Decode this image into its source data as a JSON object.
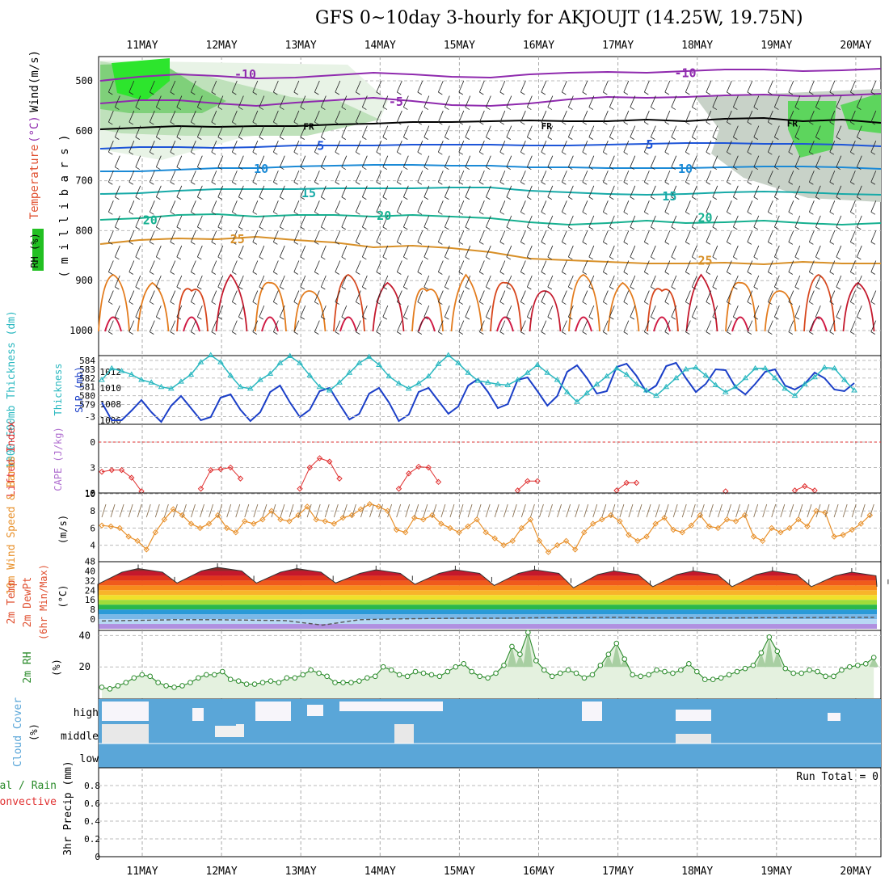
{
  "title": "GFS 0~10day 3-hourly for AKJOUJT (14.25W, 19.75N)",
  "date_labels": [
    "11MAY",
    "12MAY",
    "13MAY",
    "14MAY",
    "15MAY",
    "16MAY",
    "17MAY",
    "18MAY",
    "19MAY",
    "20MAY"
  ],
  "colors": {
    "rh": "#22c022",
    "temperature": "#e05030",
    "cape": "#b070d0",
    "slp": "#1b3fc8",
    "thickness": "#2ab8c0",
    "lifted": "#e03030",
    "wind10": "#e8902a",
    "rh2m": "#2a8a2a",
    "cloud": "#5aa6d8",
    "precip": "#2a8a2a"
  },
  "run_total_label": "Run Total = 0",
  "chart_data": [
    {
      "type": "heatmap",
      "panel": "upper-air",
      "ylabel_parts": [
        "RH (%)",
        "Temperature",
        "(°C)",
        "Wind",
        "(m/s)"
      ],
      "yaxis_label": "( m i l l i b a r s )",
      "ylim": [
        1000,
        470
      ],
      "yticks": [
        500,
        600,
        700,
        800,
        900,
        1000
      ],
      "contour_labels": [
        {
          "day": 1.3,
          "p": 487,
          "text": "-10"
        },
        {
          "day": 6.85,
          "p": 485,
          "text": "-10"
        },
        {
          "day": 3.2,
          "p": 542,
          "text": "-5"
        },
        {
          "day": 2.1,
          "p": 590,
          "text": "FR"
        },
        {
          "day": 5.1,
          "p": 589,
          "text": "FR"
        },
        {
          "day": 8.2,
          "p": 583,
          "text": "FR"
        },
        {
          "day": 2.25,
          "p": 630,
          "text": "5"
        },
        {
          "day": 6.4,
          "p": 628,
          "text": "5"
        },
        {
          "day": 1.5,
          "p": 676,
          "text": "10"
        },
        {
          "day": 6.85,
          "p": 676,
          "text": "10"
        },
        {
          "day": 2.1,
          "p": 725,
          "text": "15"
        },
        {
          "day": 6.65,
          "p": 731,
          "text": "15"
        },
        {
          "day": 0.1,
          "p": 779,
          "text": "20"
        },
        {
          "day": 3.05,
          "p": 770,
          "text": "20"
        },
        {
          "day": 7.1,
          "p": 774,
          "text": "20"
        },
        {
          "day": 1.2,
          "p": 817,
          "text": "25"
        },
        {
          "day": 7.1,
          "p": 860,
          "text": "25"
        }
      ]
    },
    {
      "type": "line",
      "panel": "slp-thickness",
      "ylabel": "1000-500mb Thickness (dm)",
      "ylabel2": "SLP (mb)",
      "yticks_left": [
        579,
        580,
        581,
        582,
        583,
        584
      ],
      "yticks_right": [
        1006,
        1008,
        1010,
        1012
      ],
      "series": [
        {
          "name": "SLP",
          "values": [
            1008.2,
            1006.0,
            1006.0,
            1007.2,
            1008.5,
            1007.0,
            1005.8,
            1007.8,
            1009.0,
            1007.5,
            1006.0,
            1006.4,
            1008.8,
            1009.2,
            1007.3,
            1005.9,
            1007.0,
            1009.5,
            1010.3,
            1008.2,
            1006.4,
            1007.3,
            1009.6,
            1010.0,
            1008.0,
            1006.1,
            1006.8,
            1009.3,
            1010.0,
            1008.2,
            1005.9,
            1006.7,
            1009.5,
            1010.0,
            1008.4,
            1006.8,
            1007.7,
            1010.3,
            1011.1,
            1009.5,
            1007.5,
            1008.0,
            1011.0,
            1011.3,
            1009.6,
            1007.8,
            1009.0,
            1012.0,
            1012.8,
            1011.2,
            1009.3,
            1009.6,
            1012.6,
            1013.0,
            1011.5,
            1009.5,
            1010.3,
            1012.7,
            1013.1,
            1011.2,
            1009.5,
            1010.5,
            1012.3,
            1012.2,
            1010.1,
            1009.2,
            1010.5,
            1012.0,
            1012.3,
            1010.3,
            1009.8,
            1010.5,
            1011.9,
            1011.2,
            1009.8,
            1009.6,
            1010.6
          ]
        },
        {
          "name": "Thickness",
          "values": [
            581.8,
            583.1,
            582.8,
            582.4,
            581.8,
            581.5,
            581.0,
            580.8,
            581.6,
            582.4,
            583.8,
            584.6,
            583.8,
            582.3,
            581.0,
            580.8,
            581.8,
            582.5,
            583.7,
            584.5,
            583.7,
            582.3,
            581.0,
            580.6,
            581.5,
            582.6,
            583.7,
            584.4,
            583.5,
            582.2,
            581.4,
            580.8,
            581.4,
            582.2,
            583.6,
            584.6,
            583.7,
            582.6,
            581.7,
            581.5,
            581.3,
            581.2,
            581.8,
            582.6,
            583.5,
            582.6,
            581.8,
            580.4,
            579.3,
            580.3,
            581.3,
            582.2,
            583.1,
            582.4,
            581.3,
            580.6,
            580.0,
            581.0,
            582.0,
            583.0,
            583.2,
            582.3,
            581.2,
            580.4,
            581.0,
            582.0,
            583.1,
            583.1,
            582.0,
            580.8,
            580.0,
            581.3,
            582.1,
            583.2,
            583.1,
            581.8,
            580.6
          ]
        }
      ]
    },
    {
      "type": "line",
      "panel": "stability",
      "ylabel": "Lifted Index",
      "ylabel2": "CAPE (J/kg)",
      "yticks": [
        -3,
        0,
        3,
        6
      ],
      "yticks_right": [
        10
      ],
      "series": [
        {
          "name": "Lifted Index",
          "values": [
            3.5,
            3.3,
            3.3,
            4.2,
            5.8,
            6.4,
            6.8,
            6.8,
            6.4,
            6.0,
            5.5,
            3.3,
            3.2,
            3.0,
            4.3,
            6.2,
            6.8,
            6.8,
            6.4,
            6.0,
            5.5,
            3.0,
            1.9,
            2.3,
            4.3,
            6.2,
            6.8,
            6.8,
            6.4,
            6.0,
            5.5,
            3.7,
            2.9,
            3.0,
            4.7,
            6.2,
            6.8,
            6.8,
            6.6,
            6.4,
            6.2,
            6.0,
            5.7,
            4.6,
            4.6,
            6.0,
            6.8,
            6.8,
            6.6,
            6.4,
            6.2,
            6.0,
            5.7,
            4.8,
            4.8,
            6.2,
            6.8,
            6.8,
            6.6,
            6.4,
            6.2,
            6.0,
            6.0,
            5.8,
            6.0,
            6.2,
            6.6,
            6.6,
            6.4,
            6.1,
            5.7,
            5.2,
            5.7,
            6.2,
            6.6
          ]
        },
        {
          "name": "CAPE",
          "values": []
        }
      ]
    },
    {
      "type": "line",
      "panel": "wind10",
      "ylabel": "10m Wind Speed & Barbs",
      "ylabel_unit": "(m/s)",
      "yticks": [
        4,
        6,
        8,
        10
      ],
      "series": [
        {
          "name": "10m Wind Speed",
          "values": [
            6.3,
            6.2,
            6.0,
            5.0,
            4.5,
            3.5,
            5.5,
            7.0,
            8.2,
            7.5,
            6.5,
            6.0,
            6.5,
            7.5,
            6.0,
            5.5,
            6.8,
            6.5,
            7.0,
            8.0,
            7.0,
            6.8,
            7.5,
            8.5,
            7.0,
            6.8,
            6.5,
            7.2,
            7.5,
            8.2,
            8.8,
            8.5,
            8.0,
            5.8,
            5.5,
            7.2,
            7.0,
            7.5,
            6.5,
            6.0,
            5.5,
            6.2,
            7.0,
            5.5,
            4.8,
            4.0,
            4.5,
            6.0,
            7.0,
            4.5,
            3.2,
            4.0,
            4.5,
            3.5,
            5.5,
            6.5,
            7.0,
            7.5,
            6.8,
            5.2,
            4.5,
            5.0,
            6.5,
            7.2,
            5.8,
            5.5,
            6.3,
            7.5,
            6.2,
            6.0,
            7.0,
            6.8,
            7.5,
            5.0,
            4.5,
            6.0,
            5.5,
            6.0,
            7.0,
            6.2,
            8.0,
            7.8,
            5.0,
            5.2,
            5.8,
            6.5,
            7.5
          ]
        }
      ]
    },
    {
      "type": "area",
      "panel": "temperature",
      "ylabel": "2m Temp 2m DewPt (6hr Min/Max)",
      "ylabel_unit": "(°C)",
      "yticks": [
        0,
        8,
        16,
        24,
        32,
        40,
        48
      ],
      "yticks_minor": [
        -8,
        -4,
        4,
        12,
        20,
        28,
        36,
        44
      ],
      "daily_max": [
        42,
        43,
        42,
        41,
        41,
        41,
        40,
        40,
        40,
        39
      ],
      "daily_min": [
        29,
        30,
        30,
        30,
        29,
        28,
        26,
        27,
        27,
        27
      ],
      "dewpoint": [
        -1.5,
        -1.0,
        -0.5,
        -0.5,
        -0.8,
        -1.2,
        -5.0,
        -0.5,
        0.2,
        0.5,
        0.8,
        0.8,
        1.2,
        1.2,
        1.5,
        1.0,
        1.0,
        1.0,
        1.2,
        1.2,
        1.5,
        1.5
      ]
    },
    {
      "type": "area",
      "panel": "rh2m",
      "ylabel": "2m RH",
      "ylabel_unit": "(%)",
      "yticks": [
        20,
        40
      ],
      "series": [
        {
          "name": "2m RH",
          "values": [
            7,
            6,
            8,
            10,
            13,
            15,
            14,
            10,
            8,
            7,
            8,
            10,
            13,
            15,
            15,
            17,
            12,
            11,
            9,
            9,
            10,
            11,
            10,
            13,
            13,
            15,
            18,
            16,
            14,
            10,
            10,
            10,
            11,
            13,
            14,
            20,
            18,
            15,
            14,
            17,
            16,
            15,
            14,
            17,
            20,
            22,
            17,
            14,
            13,
            16,
            21,
            33,
            28,
            42,
            24,
            18,
            14,
            16,
            18,
            16,
            13,
            15,
            21,
            28,
            35,
            25,
            15,
            14,
            15,
            18,
            17,
            16,
            18,
            22,
            17,
            12,
            12,
            13,
            15,
            17,
            19,
            21,
            29,
            39,
            30,
            19,
            16,
            16,
            18,
            17,
            14,
            14,
            18,
            20,
            21,
            22,
            26
          ]
        }
      ]
    },
    {
      "type": "area",
      "panel": "cloud",
      "ylabel": "Cloud Cover",
      "ylabel_unit": "(%)",
      "levels": [
        "high",
        "middle",
        "low"
      ]
    },
    {
      "type": "bar",
      "panel": "precip",
      "ylabel": "3hr Precip (mm)",
      "ylabel2_parts": [
        "Total / Rain",
        "Convective"
      ],
      "yticks": [
        0,
        0.2,
        0.4,
        0.6,
        0.8
      ],
      "values": []
    }
  ]
}
